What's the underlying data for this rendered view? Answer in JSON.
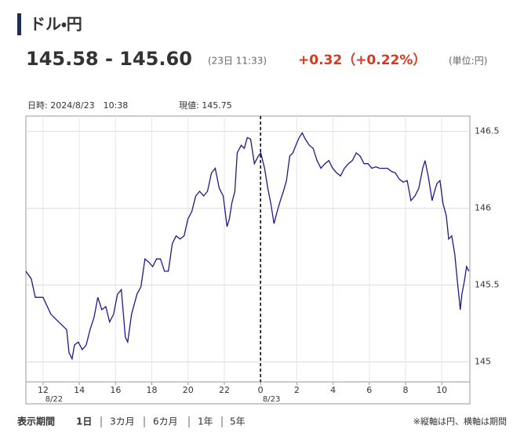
{
  "header": {
    "title": "ドル・円",
    "price": "145.58 - 145.60",
    "time": "(23日 11:33)",
    "change": "+0.32（+0.22%）",
    "unit": "(単位:円)"
  },
  "chart_data": {
    "type": "line",
    "info": [
      "日時: 2024/8/23　10:38",
      "現値: 145.75"
    ],
    "x": [
      11.05,
      11.35,
      11.57,
      12.0,
      12.43,
      12.86,
      13.3,
      13.43,
      13.6,
      13.73,
      13.94,
      14.16,
      14.38,
      14.59,
      14.81,
      15.02,
      15.24,
      15.46,
      15.67,
      15.89,
      16.1,
      16.32,
      16.54,
      16.67,
      16.88,
      17.18,
      17.4,
      17.62,
      17.83,
      18.05,
      18.26,
      18.48,
      18.7,
      18.91,
      19.13,
      19.34,
      19.56,
      19.78,
      19.99,
      20.21,
      20.42,
      20.64,
      20.86,
      21.07,
      21.29,
      21.5,
      21.72,
      21.94,
      22.15,
      22.28,
      22.41,
      22.58,
      22.71,
      22.93,
      23.1,
      23.27,
      23.45,
      23.66,
      23.88,
      24.01,
      24.22,
      24.4,
      24.57,
      24.74,
      24.92,
      25.09,
      25.26,
      25.43,
      25.61,
      25.78,
      25.95,
      26.13,
      26.3,
      26.47,
      26.69,
      26.9,
      27.12,
      27.33,
      27.55,
      27.77,
      27.98,
      28.2,
      28.41,
      28.63,
      28.85,
      29.06,
      29.28,
      29.49,
      29.71,
      29.93,
      30.14,
      30.36,
      30.57,
      30.79,
      31.01,
      31.22,
      31.44,
      31.65,
      31.87,
      32.09,
      32.3,
      32.52,
      32.73,
      32.95,
      33.08,
      33.25,
      33.47,
      33.6,
      33.73,
      33.9,
      34.07,
      34.25,
      34.38,
      34.55,
      34.72,
      34.85,
      35.02,
      35.11,
      35.24,
      35.37,
      35.5
    ],
    "series": [
      {
        "color": "#1a1a8c",
        "values": [
          145.59,
          145.54,
          145.42,
          145.42,
          145.31,
          145.26,
          145.21,
          145.06,
          145.02,
          145.11,
          145.13,
          145.08,
          145.11,
          145.21,
          145.29,
          145.42,
          145.34,
          145.36,
          145.26,
          145.31,
          145.44,
          145.47,
          145.16,
          145.13,
          145.31,
          145.44,
          145.49,
          145.67,
          145.65,
          145.62,
          145.67,
          145.67,
          145.59,
          145.59,
          145.77,
          145.82,
          145.8,
          145.82,
          145.93,
          145.98,
          146.08,
          146.11,
          146.08,
          146.11,
          146.23,
          146.26,
          146.13,
          146.08,
          145.88,
          145.93,
          146.03,
          146.11,
          146.36,
          146.41,
          146.39,
          146.46,
          146.45,
          146.29,
          146.34,
          146.36,
          146.26,
          146.13,
          146.03,
          145.9,
          145.98,
          146.05,
          146.11,
          146.18,
          146.34,
          146.36,
          146.41,
          146.46,
          146.49,
          146.45,
          146.41,
          146.39,
          146.31,
          146.26,
          146.29,
          146.31,
          146.26,
          146.23,
          146.21,
          146.26,
          146.29,
          146.31,
          146.36,
          146.34,
          146.29,
          146.29,
          146.26,
          146.27,
          146.26,
          146.26,
          146.26,
          146.24,
          146.23,
          146.19,
          146.17,
          146.18,
          146.05,
          146.08,
          146.13,
          146.26,
          146.31,
          146.21,
          146.05,
          146.11,
          146.16,
          146.18,
          146.03,
          145.95,
          145.8,
          145.82,
          145.7,
          145.54,
          145.34,
          145.44,
          145.52,
          145.62,
          145.59
        ]
      }
    ],
    "xlim": [
      11.05,
      35.55
    ],
    "xticks": [
      12,
      14,
      16,
      18,
      20,
      22,
      {
        "value": 24,
        "label": "0"
      },
      {
        "value": 26,
        "label": "2"
      },
      {
        "value": 28,
        "label": "4"
      },
      {
        "value": 30,
        "label": "6"
      },
      {
        "value": 32,
        "label": "8"
      },
      {
        "value": 34,
        "label": "10"
      }
    ],
    "date_labels": [
      {
        "value": 12,
        "label": "8/22"
      },
      {
        "value": 24,
        "label": "8/23"
      }
    ],
    "divider_x": 24,
    "ylim": [
      144.87,
      146.6
    ],
    "yticks": [
      145,
      145.5,
      146,
      146.5
    ],
    "grid": true
  },
  "footer": {
    "period_label": "表示期間",
    "periods": [
      "1日",
      "3カ月",
      "6カ月",
      "1年",
      "5年"
    ],
    "note": "※縦軸は円、横軸は期間"
  }
}
